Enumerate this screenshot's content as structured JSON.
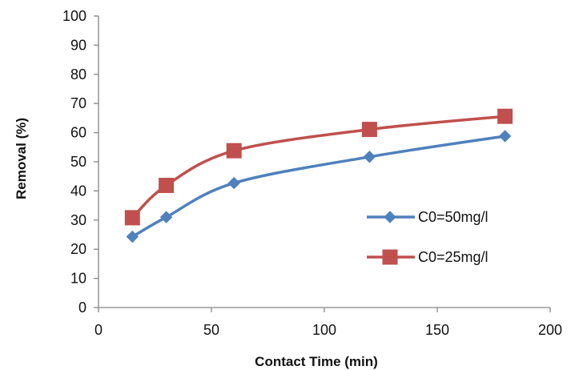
{
  "chart_data": {
    "type": "line",
    "title": "",
    "xlabel": "Contact Time (min)",
    "ylabel": "Removal (%)",
    "xlim": [
      0,
      200
    ],
    "ylim": [
      0,
      100
    ],
    "x_ticks": [
      "0",
      "50",
      "100",
      "150",
      "200"
    ],
    "y_ticks": [
      "0",
      "10",
      "20",
      "30",
      "40",
      "50",
      "60",
      "70",
      "80",
      "90",
      "100"
    ],
    "x_tick_values": [
      0,
      50,
      100,
      150,
      200
    ],
    "y_tick_values": [
      0,
      10,
      20,
      30,
      40,
      50,
      60,
      70,
      80,
      90,
      100
    ],
    "grid": false,
    "legend_position": "right",
    "series": [
      {
        "name": "C0=50mg/l",
        "color": "#4f81bd",
        "marker": "diamond",
        "x": [
          15,
          30,
          60,
          120,
          180
        ],
        "y": [
          24.3,
          31,
          42.7,
          51.7,
          58.8
        ]
      },
      {
        "name": "C0=25mg/l",
        "color": "#c0504d",
        "marker": "square",
        "x": [
          15,
          30,
          60,
          120,
          180
        ],
        "y": [
          30.8,
          41.9,
          53.8,
          61.1,
          65.6
        ]
      }
    ]
  }
}
